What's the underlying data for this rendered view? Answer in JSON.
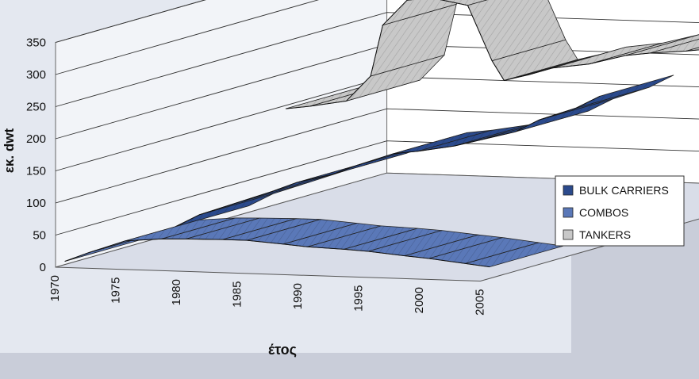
{
  "chart_data": {
    "type": "area",
    "title": "",
    "xlabel": "έτος",
    "ylabel": "εκ. dwt",
    "x": [
      1970,
      1975,
      1980,
      1985,
      1990,
      1995,
      2000,
      2005
    ],
    "xlim": [
      1970,
      2005
    ],
    "ylim": [
      0,
      350
    ],
    "yticks": [
      0,
      50,
      100,
      150,
      200,
      250,
      300,
      350
    ],
    "grid": true,
    "legend_position": "right",
    "series": [
      {
        "name": "BULK CARRIERS",
        "color": "#2b4a8c",
        "x": [
          1970,
          1972,
          1975,
          1978,
          1980,
          1983,
          1985,
          1988,
          1990,
          1993,
          1995,
          1998,
          2000,
          2003,
          2005
        ],
        "values": [
          10,
          30,
          50,
          70,
          85,
          100,
          115,
          135,
          140,
          150,
          160,
          175,
          195,
          215,
          235
        ]
      },
      {
        "name": "COMBOS",
        "color": "#5a78b8",
        "x": [
          1970,
          1972,
          1975,
          1978,
          1980,
          1983,
          1985,
          1988,
          1990,
          1993,
          1995,
          1998,
          2000,
          2003,
          2005
        ],
        "values": [
          5,
          20,
          40,
          45,
          46,
          47,
          47,
          43,
          40,
          38,
          36,
          31,
          28,
          22,
          18
        ]
      },
      {
        "name": "TANKERS",
        "color": "#c8c8c8",
        "x": [
          1970,
          1972,
          1975,
          1977,
          1978,
          1980,
          1982,
          1985,
          1987,
          1988,
          1989,
          1990,
          1992,
          1995,
          1998,
          2000,
          2003,
          2005
        ],
        "values": [
          145,
          150,
          160,
          200,
          280,
          320,
          325,
          315,
          230,
          200,
          205,
          210,
          222,
          230,
          245,
          250,
          255,
          260
        ]
      }
    ]
  }
}
